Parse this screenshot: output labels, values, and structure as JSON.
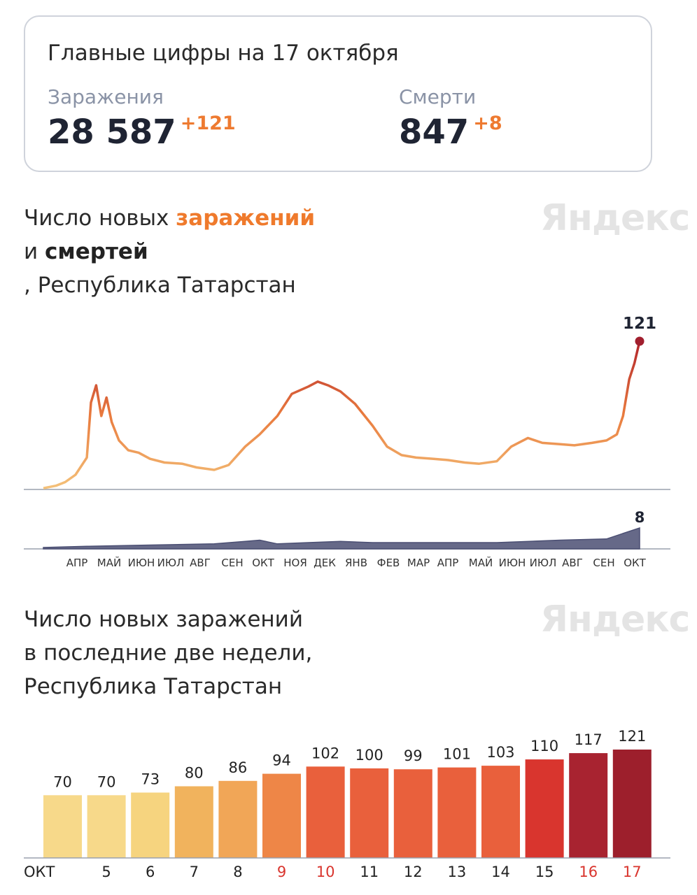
{
  "summary": {
    "title": "Главные цифры на 17 октября",
    "infections": {
      "label": "Заражения",
      "value": "28 587",
      "delta": "+121"
    },
    "deaths": {
      "label": "Смерти",
      "value": "847",
      "delta": "+8"
    }
  },
  "section1": {
    "line1_prefix": "Число новых ",
    "line1_accent": "заражений",
    "line2_prefix": "и ",
    "line2_accent": "смертей",
    "line3": ", Республика Татарстан"
  },
  "section2": {
    "line1": "Число новых заражений",
    "line2": "в последние две недели,",
    "line3": "Республика Татарстан"
  },
  "watermark": "Яндекс",
  "colors": {
    "infections_accent": "#ef7a2c",
    "deaths_line": "#4b4f73",
    "last_point": "#a11f2e",
    "axis": "#9aa0ad"
  },
  "chart_data": [
    {
      "type": "line",
      "series": [
        {
          "name": "заражений",
          "x": [
            "2020-03-20",
            "2020-04-01",
            "2020-04-10",
            "2020-04-20",
            "2020-05-01",
            "2020-05-05",
            "2020-05-10",
            "2020-05-15",
            "2020-05-20",
            "2020-05-25",
            "2020-06-01",
            "2020-06-10",
            "2020-06-20",
            "2020-07-01",
            "2020-07-15",
            "2020-08-01",
            "2020-08-15",
            "2020-09-01",
            "2020-09-15",
            "2020-10-01",
            "2020-10-15",
            "2020-11-01",
            "2020-11-15",
            "2020-12-01",
            "2020-12-10",
            "2020-12-20",
            "2021-01-01",
            "2021-01-15",
            "2021-02-01",
            "2021-02-15",
            "2021-03-01",
            "2021-03-15",
            "2021-04-01",
            "2021-04-15",
            "2021-05-01",
            "2021-05-15",
            "2021-06-01",
            "2021-06-15",
            "2021-07-01",
            "2021-07-15",
            "2021-08-01",
            "2021-08-15",
            "2021-09-01",
            "2021-09-15",
            "2021-09-25",
            "2021-10-01",
            "2021-10-07",
            "2021-10-12",
            "2021-10-17"
          ],
          "y": [
            1,
            3,
            6,
            12,
            26,
            71,
            85,
            60,
            75,
            55,
            40,
            32,
            30,
            25,
            22,
            21,
            18,
            16,
            20,
            35,
            45,
            60,
            78,
            84,
            88,
            85,
            80,
            70,
            52,
            35,
            28,
            26,
            25,
            24,
            22,
            21,
            23,
            35,
            42,
            38,
            37,
            36,
            38,
            40,
            45,
            60,
            90,
            103,
            121
          ]
        },
        {
          "name": "смертей",
          "x": [
            "2020-03-20",
            "2020-05-01",
            "2020-07-01",
            "2020-09-01",
            "2020-10-01",
            "2020-10-15",
            "2020-11-01",
            "2020-12-01",
            "2021-01-01",
            "2021-02-01",
            "2021-04-01",
            "2021-06-01",
            "2021-08-01",
            "2021-09-15",
            "2021-10-17"
          ],
          "y": [
            0,
            0.5,
            1,
            1.5,
            2.5,
            3,
            1.5,
            2,
            2.5,
            2,
            2,
            2,
            3,
            3.5,
            8
          ]
        }
      ],
      "xticks": [
        "АПР",
        "МАЙ",
        "ИЮН",
        "ИЮЛ",
        "АВГ",
        "СЕН",
        "ОКТ",
        "НОЯ",
        "ДЕК",
        "ЯНВ",
        "ФЕВ",
        "МАР",
        "АПР",
        "МАЙ",
        "ИЮН",
        "ИЮЛ",
        "АВГ",
        "СЕН",
        "ОКТ"
      ],
      "annotations": [
        "121",
        "8"
      ],
      "grid": false
    },
    {
      "type": "bar",
      "categories": [
        "ОКТ",
        "5",
        "6",
        "7",
        "8",
        "9",
        "10",
        "11",
        "12",
        "13",
        "14",
        "15",
        "16",
        "17"
      ],
      "values": [
        70,
        70,
        73,
        80,
        86,
        94,
        102,
        100,
        99,
        101,
        103,
        110,
        117,
        121
      ],
      "highlight_categories": [
        "9",
        "10",
        "16",
        "17"
      ],
      "bar_colors": [
        "#f7d98a",
        "#f7d98a",
        "#f6d47f",
        "#f1b35d",
        "#f1a657",
        "#ee8647",
        "#e9603c",
        "#e9603c",
        "#e9603c",
        "#e9603c",
        "#e9603c",
        "#d9352e",
        "#a82330",
        "#9d1f2c"
      ],
      "ylim": [
        0,
        130
      ],
      "grid": false
    }
  ]
}
